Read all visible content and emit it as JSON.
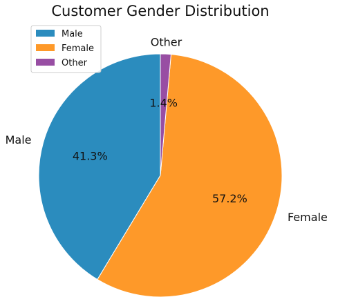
{
  "chart_data": {
    "type": "pie",
    "title": "Customer Gender Distribution",
    "categories": [
      "Male",
      "Female",
      "Other"
    ],
    "values": [
      41.3,
      57.2,
      1.4
    ],
    "percent_labels": [
      "41.3%",
      "57.2%",
      "1.4%"
    ],
    "colors": [
      "#2b8cbe",
      "#fe9929",
      "#984ea3"
    ],
    "legend": {
      "placement": "top-left",
      "entries": [
        "Male",
        "Female",
        "Other"
      ]
    },
    "start_angle_deg": 90,
    "direction": "counterclockwise"
  }
}
